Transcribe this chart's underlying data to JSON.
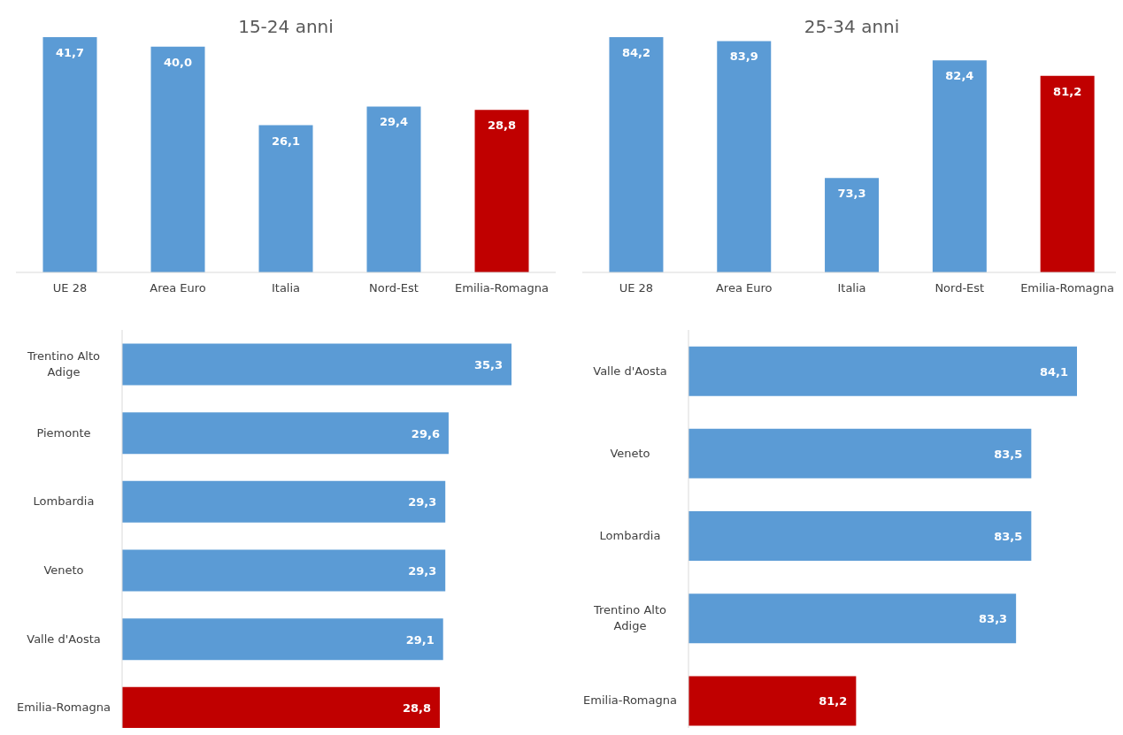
{
  "chart_data": [
    {
      "type": "bar",
      "title": "15-24 anni",
      "categories": [
        "UE 28",
        "Area Euro",
        "Italia",
        "Nord-Est",
        "Emilia-Romagna"
      ],
      "values": [
        41.7,
        40.0,
        26.1,
        29.4,
        28.8
      ],
      "value_labels": [
        "41,7",
        "40,0",
        "26,1",
        "29,4",
        "28,8"
      ],
      "colors": [
        "#5b9bd5",
        "#5b9bd5",
        "#5b9bd5",
        "#5b9bd5",
        "#c00000"
      ],
      "tick_labels": "x"
    },
    {
      "type": "bar",
      "title": "25-34 anni",
      "categories": [
        "UE 28",
        "Area Euro",
        "Italia",
        "Nord-Est",
        "Emilia-Romagna"
      ],
      "values": [
        84.2,
        83.9,
        73.3,
        82.4,
        81.2
      ],
      "value_labels": [
        "84,2",
        "83,9",
        "73,3",
        "82,4",
        "81,2"
      ],
      "colors": [
        "#5b9bd5",
        "#5b9bd5",
        "#5b9bd5",
        "#5b9bd5",
        "#c00000"
      ],
      "ylim": [
        66,
        84.2
      ],
      "tick_labels": "x"
    },
    {
      "type": "bar",
      "orientation": "horizontal",
      "categories": [
        "Trentino Alto Adige",
        "Piemonte",
        "Lombardia",
        "Veneto",
        "Valle d'Aosta",
        "Emilia-Romagna"
      ],
      "values": [
        35.3,
        29.6,
        29.3,
        29.3,
        29.1,
        28.8
      ],
      "value_labels": [
        "35,3",
        "29,6",
        "29,3",
        "29,3",
        "29,1",
        "28,8"
      ],
      "colors": [
        "#5b9bd5",
        "#5b9bd5",
        "#5b9bd5",
        "#5b9bd5",
        "#5b9bd5",
        "#c00000"
      ],
      "tick_labels": "y"
    },
    {
      "type": "bar",
      "orientation": "horizontal",
      "categories": [
        "Valle d'Aosta",
        "Veneto",
        "Lombardia",
        "Trentino Alto Adige",
        "Emilia-Romagna"
      ],
      "values": [
        84.1,
        83.5,
        83.5,
        83.3,
        81.2
      ],
      "value_labels": [
        "84,1",
        "83,5",
        "83,5",
        "83,3",
        "81,2"
      ],
      "colors": [
        "#5b9bd5",
        "#5b9bd5",
        "#5b9bd5",
        "#5b9bd5",
        "#c00000"
      ],
      "xlim": [
        79,
        84.1
      ],
      "tick_labels": "y"
    }
  ]
}
